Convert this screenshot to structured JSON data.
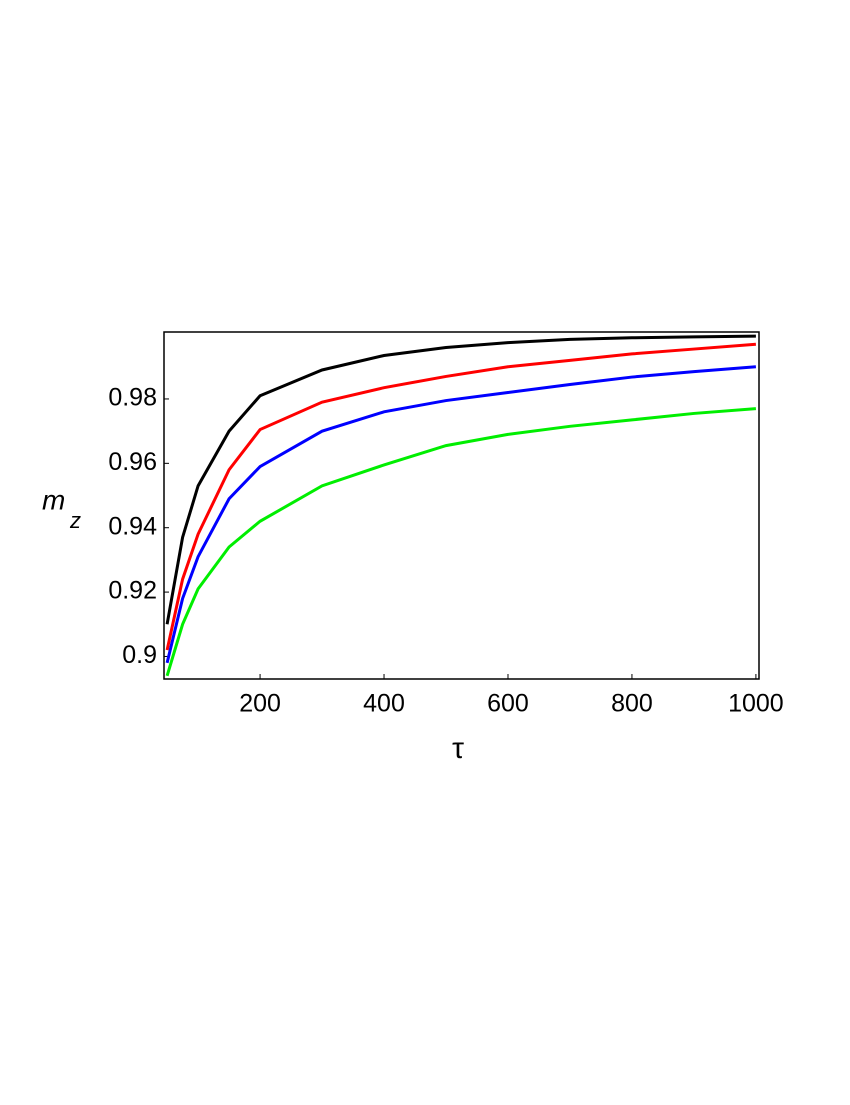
{
  "chart_data": {
    "type": "line",
    "xlabel": "τ",
    "ylabel": {
      "text": "m",
      "subscript": "z"
    },
    "x": [
      50,
      75,
      100,
      150,
      200,
      300,
      400,
      500,
      600,
      700,
      800,
      900,
      1000
    ],
    "series": [
      {
        "color": "#000000",
        "values": [
          0.91,
          0.937,
          0.953,
          0.97,
          0.981,
          0.989,
          0.9935,
          0.996,
          0.9975,
          0.9985,
          0.999,
          0.9993,
          0.9995
        ]
      },
      {
        "color": "#ff0000",
        "values": [
          0.902,
          0.924,
          0.938,
          0.958,
          0.9705,
          0.979,
          0.9835,
          0.987,
          0.99,
          0.992,
          0.994,
          0.9955,
          0.997
        ]
      },
      {
        "color": "#0000ff",
        "values": [
          0.898,
          0.918,
          0.931,
          0.949,
          0.959,
          0.97,
          0.976,
          0.9795,
          0.982,
          0.9845,
          0.9868,
          0.9885,
          0.99
        ]
      },
      {
        "color": "#00ee00",
        "values": [
          0.894,
          0.91,
          0.921,
          0.934,
          0.942,
          0.953,
          0.9595,
          0.9655,
          0.969,
          0.9715,
          0.9735,
          0.9755,
          0.977
        ]
      }
    ],
    "xlim": [
      45,
      1005
    ],
    "xticks": [
      200,
      400,
      600,
      800,
      1000
    ],
    "ylim": [
      0.893,
      1.0008
    ],
    "yticks": [
      0.9,
      0.92,
      0.94,
      0.96,
      0.98
    ],
    "grid": false
  }
}
